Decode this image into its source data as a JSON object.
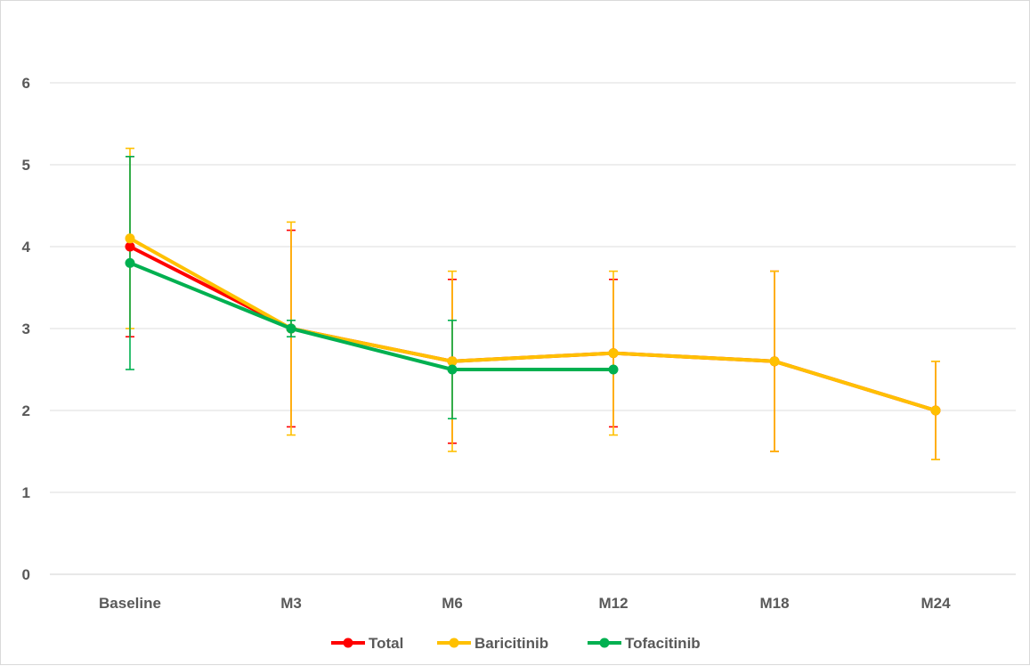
{
  "chart_data": {
    "type": "line",
    "title": "",
    "xlabel": "",
    "ylabel": "",
    "categories": [
      "Baseline",
      "M3",
      "M6",
      "M12",
      "M18",
      "M24"
    ],
    "ylim": [
      0,
      6
    ],
    "yticks": [
      0,
      1,
      2,
      3,
      4,
      5,
      6
    ],
    "grid": true,
    "legend_position": "bottom",
    "series": [
      {
        "name": "Total",
        "color": "#ff0000",
        "values": [
          4.0,
          3.0,
          2.6,
          2.7,
          2.6,
          2.0
        ],
        "error_low": [
          2.9,
          1.8,
          1.6,
          1.8,
          1.5,
          1.4
        ],
        "error_high": [
          5.1,
          4.2,
          3.6,
          3.6,
          3.7,
          2.6
        ]
      },
      {
        "name": "Baricitinib",
        "color": "#ffc000",
        "values": [
          4.1,
          3.0,
          2.6,
          2.7,
          2.6,
          2.0
        ],
        "error_low": [
          3.0,
          1.7,
          1.5,
          1.7,
          1.5,
          1.4
        ],
        "error_high": [
          5.2,
          4.3,
          3.7,
          3.7,
          3.7,
          2.6
        ]
      },
      {
        "name": "Tofacitinib",
        "color": "#00b050",
        "values": [
          3.8,
          3.0,
          2.5,
          2.5,
          null,
          null
        ],
        "error_low": [
          2.5,
          2.9,
          1.9,
          null,
          null,
          null
        ],
        "error_high": [
          5.1,
          3.1,
          3.1,
          null,
          null,
          null
        ]
      }
    ]
  }
}
